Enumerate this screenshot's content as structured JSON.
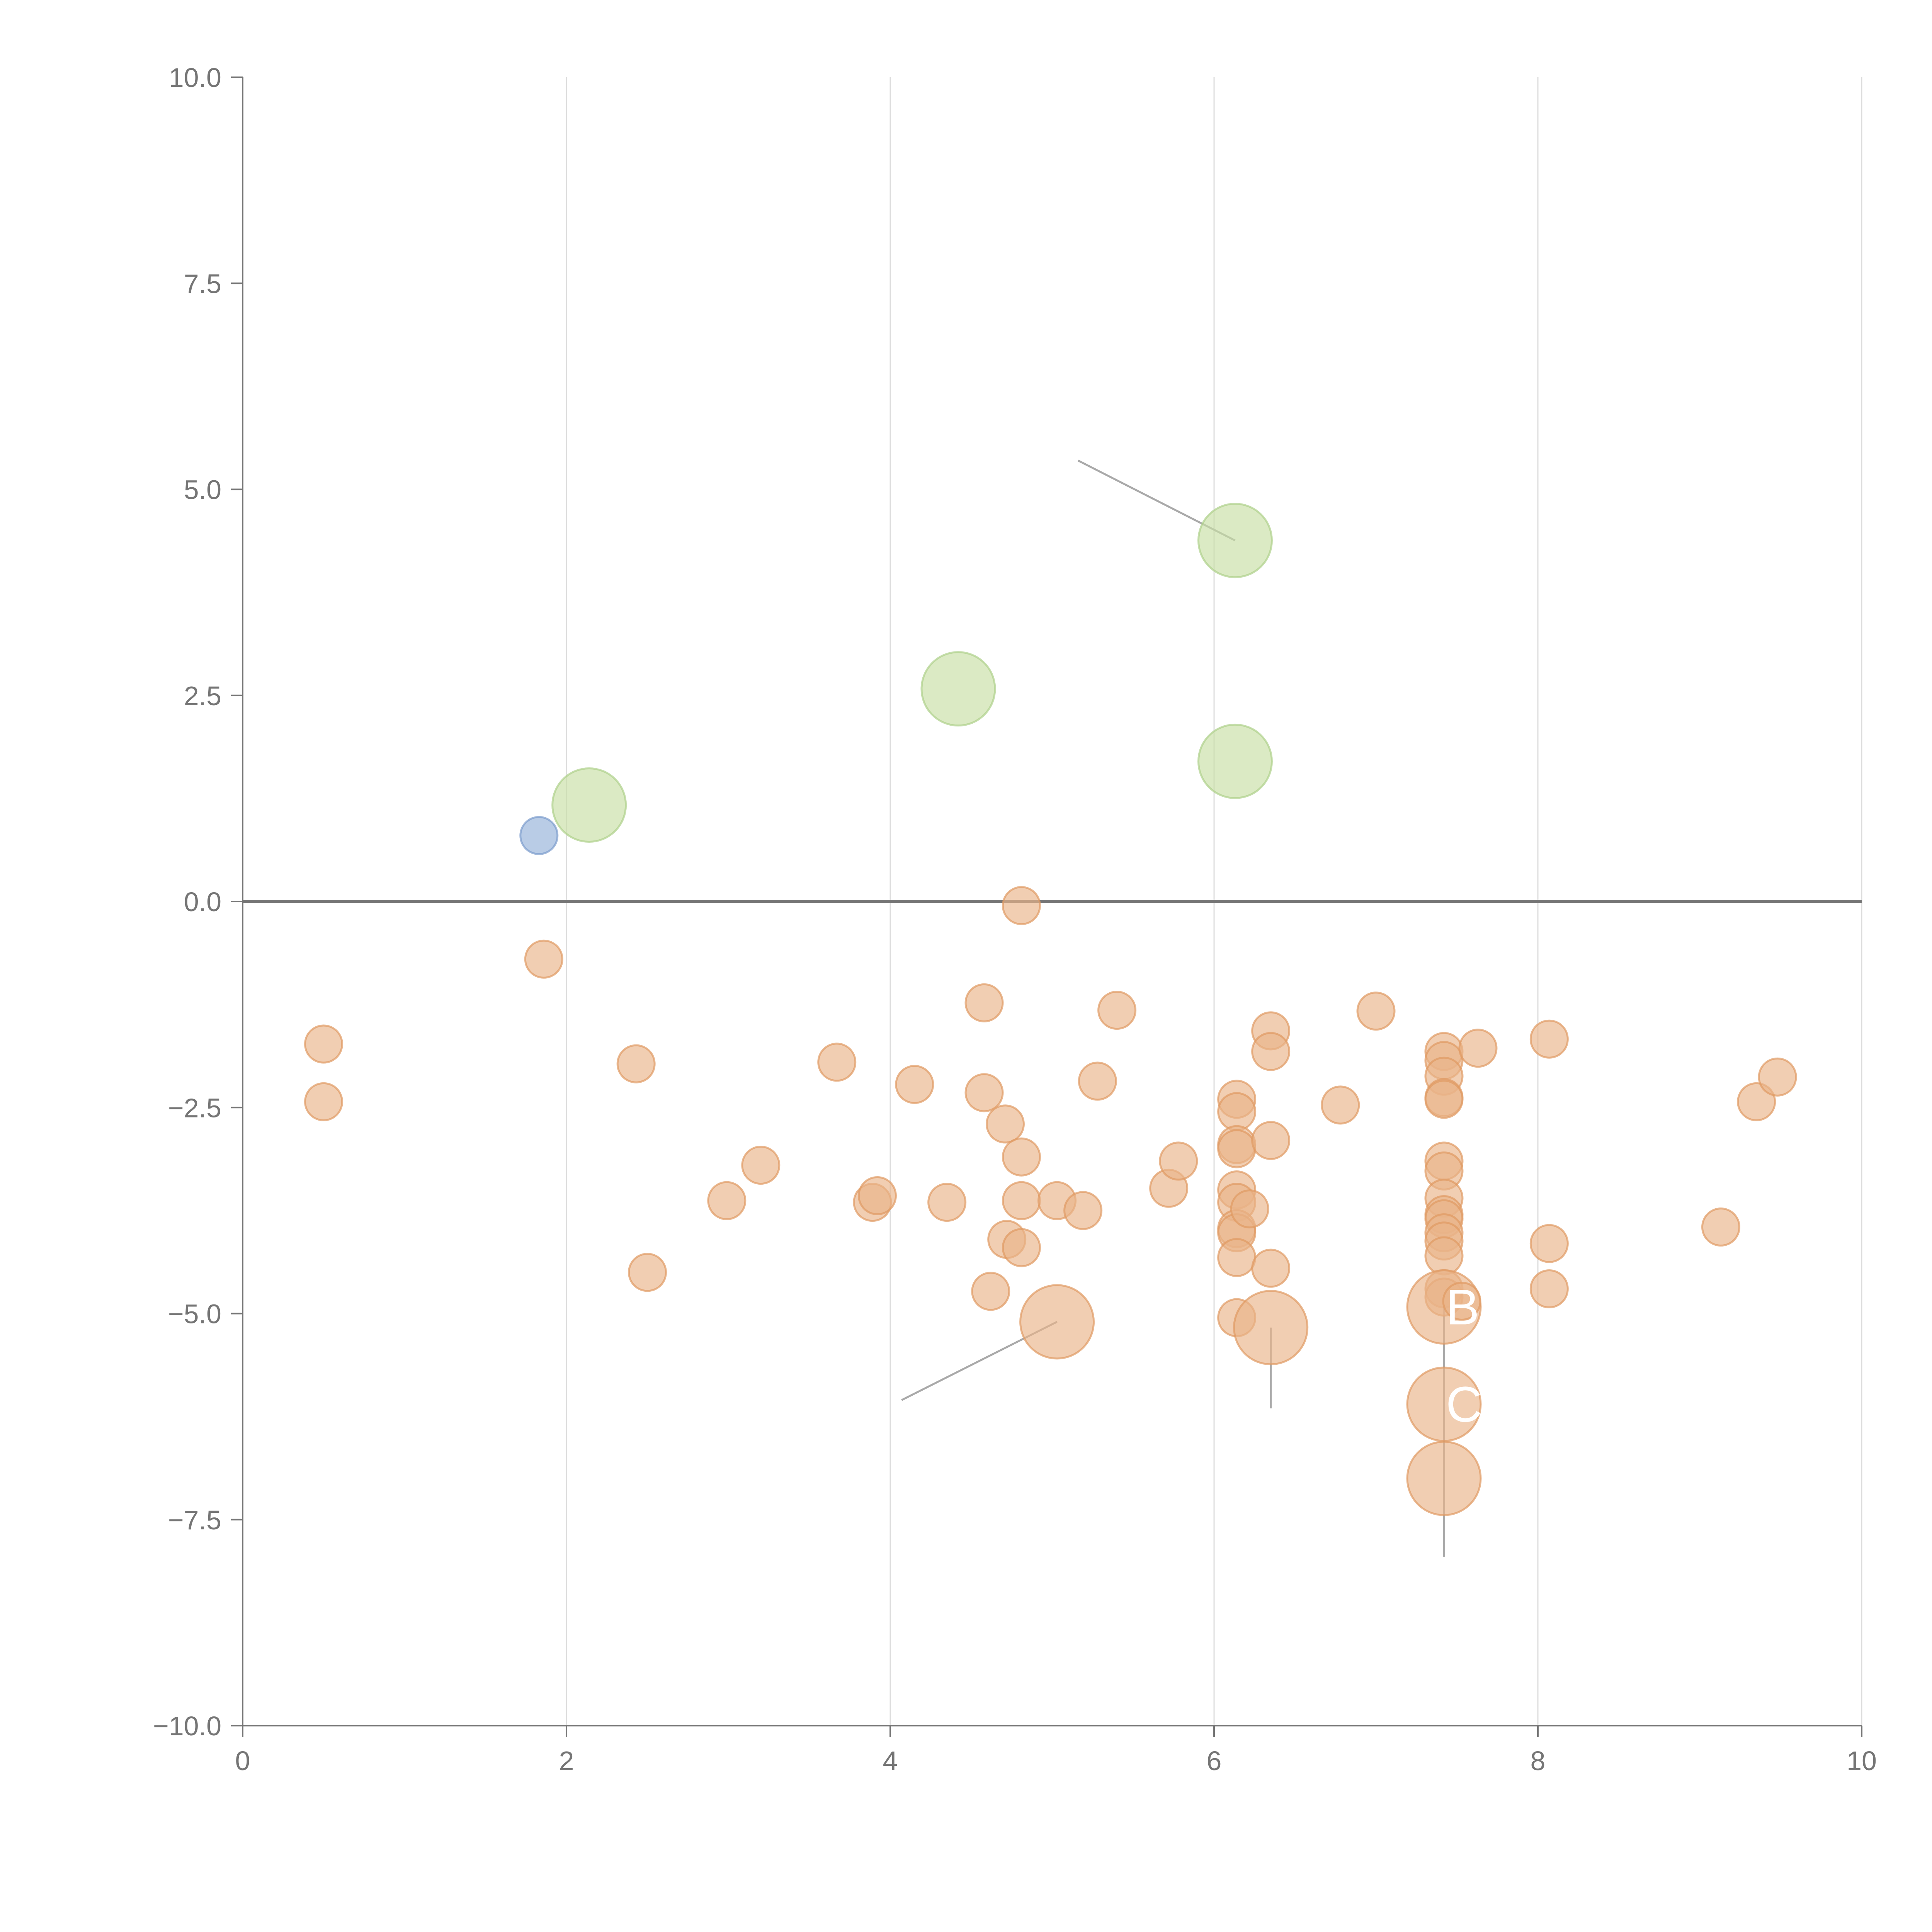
{
  "chart_data": {
    "type": "scatter",
    "title": "",
    "xlabel": "",
    "ylabel": "",
    "xlim": [
      0,
      10
    ],
    "ylim": [
      -10,
      10
    ],
    "x_ticks": [
      0,
      2,
      4,
      6,
      8,
      10
    ],
    "x_tick_labels": [
      "0",
      "2",
      "4",
      "6",
      "8",
      "10"
    ],
    "y_ticks": [
      10,
      7.5,
      5,
      2.5,
      0,
      -2.5,
      -5,
      -7.5,
      -10
    ],
    "y_tick_labels": [
      "10.0",
      "7.5",
      "5.0",
      "2.5",
      "0.0",
      "−2.5",
      "−5.0",
      "−7.5",
      "−10.0"
    ],
    "x_grid": true,
    "y_grid": false,
    "zero_line": true,
    "colors": {
      "blue": "#94b1d9",
      "green": "#c7dea5",
      "orange": "#eab489",
      "blue_stroke": "#7a9bcc",
      "green_stroke": "#aed08a",
      "orange_stroke": "#e09a62"
    },
    "series": [
      {
        "name": "blue",
        "color_key": "blue",
        "points": [
          {
            "x": 1.83,
            "y": 0.8,
            "size": 1
          }
        ]
      },
      {
        "name": "green",
        "color_key": "green",
        "points": [
          {
            "x": 2.14,
            "y": 1.17,
            "size": 3
          },
          {
            "x": 4.42,
            "y": 2.58,
            "size": 3
          },
          {
            "x": 6.13,
            "y": 4.38,
            "size": 3
          },
          {
            "x": 6.13,
            "y": 1.7,
            "size": 3
          }
        ]
      },
      {
        "name": "orange",
        "color_key": "orange",
        "points": [
          {
            "x": 0.5,
            "y": -1.73,
            "size": 1
          },
          {
            "x": 0.5,
            "y": -2.43,
            "size": 1
          },
          {
            "x": 1.86,
            "y": -0.7,
            "size": 1
          },
          {
            "x": 2.43,
            "y": -1.97,
            "size": 1
          },
          {
            "x": 2.5,
            "y": -4.5,
            "size": 1
          },
          {
            "x": 2.99,
            "y": -3.63,
            "size": 1
          },
          {
            "x": 3.2,
            "y": -3.2,
            "size": 1
          },
          {
            "x": 3.67,
            "y": -1.95,
            "size": 1
          },
          {
            "x": 3.89,
            "y": -3.65,
            "size": 1
          },
          {
            "x": 3.92,
            "y": -3.57,
            "size": 1
          },
          {
            "x": 4.15,
            "y": -2.22,
            "size": 1
          },
          {
            "x": 4.35,
            "y": -3.65,
            "size": 1
          },
          {
            "x": 4.58,
            "y": -1.23,
            "size": 1
          },
          {
            "x": 4.58,
            "y": -2.32,
            "size": 1
          },
          {
            "x": 4.62,
            "y": -4.73,
            "size": 1
          },
          {
            "x": 4.71,
            "y": -2.7,
            "size": 1
          },
          {
            "x": 4.72,
            "y": -4.1,
            "size": 1
          },
          {
            "x": 4.81,
            "y": -0.05,
            "size": 1
          },
          {
            "x": 4.81,
            "y": -3.1,
            "size": 1
          },
          {
            "x": 4.81,
            "y": -3.63,
            "size": 1
          },
          {
            "x": 4.81,
            "y": -4.2,
            "size": 1
          },
          {
            "x": 5.03,
            "y": -3.63,
            "size": 1
          },
          {
            "x": 5.03,
            "y": -5.1,
            "size": 3
          },
          {
            "x": 5.19,
            "y": -3.75,
            "size": 1
          },
          {
            "x": 5.28,
            "y": -2.18,
            "size": 1
          },
          {
            "x": 5.4,
            "y": -1.32,
            "size": 1
          },
          {
            "x": 5.72,
            "y": -3.48,
            "size": 1
          },
          {
            "x": 5.78,
            "y": -3.15,
            "size": 1
          },
          {
            "x": 6.14,
            "y": -2.4,
            "size": 1
          },
          {
            "x": 6.14,
            "y": -2.55,
            "size": 1
          },
          {
            "x": 6.14,
            "y": -2.95,
            "size": 1
          },
          {
            "x": 6.14,
            "y": -3.0,
            "size": 1
          },
          {
            "x": 6.14,
            "y": -3.5,
            "size": 1
          },
          {
            "x": 6.14,
            "y": -3.65,
            "size": 1
          },
          {
            "x": 6.14,
            "y": -3.97,
            "size": 1
          },
          {
            "x": 6.14,
            "y": -4.02,
            "size": 1
          },
          {
            "x": 6.14,
            "y": -4.32,
            "size": 1
          },
          {
            "x": 6.14,
            "y": -5.05,
            "size": 1
          },
          {
            "x": 6.22,
            "y": -3.73,
            "size": 1
          },
          {
            "x": 6.35,
            "y": -1.57,
            "size": 1
          },
          {
            "x": 6.35,
            "y": -1.82,
            "size": 1
          },
          {
            "x": 6.35,
            "y": -2.9,
            "size": 1
          },
          {
            "x": 6.35,
            "y": -4.45,
            "size": 1
          },
          {
            "x": 6.35,
            "y": -5.17,
            "size": 3
          },
          {
            "x": 6.78,
            "y": -2.47,
            "size": 1
          },
          {
            "x": 7.0,
            "y": -1.33,
            "size": 1
          },
          {
            "x": 7.42,
            "y": -1.82,
            "size": 1
          },
          {
            "x": 7.42,
            "y": -1.93,
            "size": 1
          },
          {
            "x": 7.42,
            "y": -2.12,
            "size": 1
          },
          {
            "x": 7.42,
            "y": -2.38,
            "size": 1
          },
          {
            "x": 7.42,
            "y": -2.4,
            "size": 1
          },
          {
            "x": 7.42,
            "y": -3.15,
            "size": 1
          },
          {
            "x": 7.42,
            "y": -3.27,
            "size": 1
          },
          {
            "x": 7.42,
            "y": -3.6,
            "size": 1
          },
          {
            "x": 7.42,
            "y": -3.8,
            "size": 1
          },
          {
            "x": 7.42,
            "y": -3.85,
            "size": 1
          },
          {
            "x": 7.42,
            "y": -4.02,
            "size": 1
          },
          {
            "x": 7.42,
            "y": -4.12,
            "size": 1
          },
          {
            "x": 7.42,
            "y": -4.3,
            "size": 1
          },
          {
            "x": 7.42,
            "y": -4.7,
            "size": 1
          },
          {
            "x": 7.42,
            "y": -4.8,
            "size": 1
          },
          {
            "x": 7.42,
            "y": -4.92,
            "size": 3
          },
          {
            "x": 7.42,
            "y": -6.1,
            "size": 3
          },
          {
            "x": 7.42,
            "y": -7.0,
            "size": 3
          },
          {
            "x": 7.53,
            "y": -4.85,
            "size": 1
          },
          {
            "x": 7.63,
            "y": -1.78,
            "size": 1
          },
          {
            "x": 8.07,
            "y": -1.67,
            "size": 1
          },
          {
            "x": 8.07,
            "y": -4.15,
            "size": 1
          },
          {
            "x": 8.07,
            "y": -4.7,
            "size": 1
          },
          {
            "x": 9.13,
            "y": -3.95,
            "size": 1
          },
          {
            "x": 9.35,
            "y": -2.43,
            "size": 1
          },
          {
            "x": 9.48,
            "y": -2.13,
            "size": 1
          }
        ]
      }
    ],
    "annotations": [
      {
        "text": "",
        "x1": 5.16,
        "y1": 5.35,
        "x2": 6.13,
        "y2": 4.38
      },
      {
        "text": "",
        "x1": 4.07,
        "y1": -6.05,
        "x2": 5.03,
        "y2": -5.1
      },
      {
        "text": "",
        "x1": 6.35,
        "y1": -6.15,
        "x2": 6.35,
        "y2": -5.17
      },
      {
        "text": "B",
        "x1": 7.42,
        "y1": -7.95,
        "x2": 7.42,
        "y2": -4.92
      },
      {
        "text": "C",
        "x1": 7.42,
        "y1": -7.95,
        "x2": 7.42,
        "y2": -6.1
      }
    ]
  }
}
